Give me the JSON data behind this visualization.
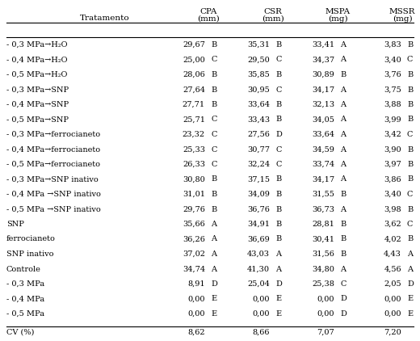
{
  "col_header_line1": [
    "CPA",
    "CSR",
    "MSPA",
    "MSSR"
  ],
  "col_header_line2": [
    "(mm)",
    "(mm)",
    "(mg)",
    "(mg)"
  ],
  "row_label": "Tratamento",
  "rows": [
    {
      "label": "- 0,3 MPa→H₂O",
      "cpa": "29,67",
      "cpa_l": "B",
      "csr": "35,31",
      "csr_l": "B",
      "mspa": "33,41",
      "mspa_l": "A",
      "mssr": "3,83",
      "mssr_l": "B"
    },
    {
      "label": "- 0,4 MPa→H₂O",
      "cpa": "25,00",
      "cpa_l": "C",
      "csr": "29,50",
      "csr_l": "C",
      "mspa": "34,37",
      "mspa_l": "A",
      "mssr": "3,40",
      "mssr_l": "C"
    },
    {
      "label": "- 0,5 MPa→H₂O",
      "cpa": "28,06",
      "cpa_l": "B",
      "csr": "35,85",
      "csr_l": "B",
      "mspa": "30,89",
      "mspa_l": "B",
      "mssr": "3,76",
      "mssr_l": "B"
    },
    {
      "label": "- 0,3 MPa→SNP",
      "cpa": "27,64",
      "cpa_l": "B",
      "csr": "30,95",
      "csr_l": "C",
      "mspa": "34,17",
      "mspa_l": "A",
      "mssr": "3,75",
      "mssr_l": "B"
    },
    {
      "label": "- 0,4 MPa→SNP",
      "cpa": "27,71",
      "cpa_l": "B",
      "csr": "33,64",
      "csr_l": "B",
      "mspa": "32,13",
      "mspa_l": "A",
      "mssr": "3,88",
      "mssr_l": "B"
    },
    {
      "label": "- 0,5 MPa→SNP",
      "cpa": "25,71",
      "cpa_l": "C",
      "csr": "33,43",
      "csr_l": "B",
      "mspa": "34,05",
      "mspa_l": "A",
      "mssr": "3,99",
      "mssr_l": "B"
    },
    {
      "label": "- 0,3 MPa→ferrocianeto",
      "cpa": "23,32",
      "cpa_l": "C",
      "csr": "27,56",
      "csr_l": "D",
      "mspa": "33,64",
      "mspa_l": "A",
      "mssr": "3,42",
      "mssr_l": "C"
    },
    {
      "label": "- 0,4 MPa→ferrocianeto",
      "cpa": "25,33",
      "cpa_l": "C",
      "csr": "30,77",
      "csr_l": "C",
      "mspa": "34,59",
      "mspa_l": "A",
      "mssr": "3,90",
      "mssr_l": "B"
    },
    {
      "label": "- 0,5 MPa→ferrocianeto",
      "cpa": "26,33",
      "cpa_l": "C",
      "csr": "32,24",
      "csr_l": "C",
      "mspa": "33,74",
      "mspa_l": "A",
      "mssr": "3,97",
      "mssr_l": "B"
    },
    {
      "label": "- 0,3 MPa→SNP inativo",
      "cpa": "30,80",
      "cpa_l": "B",
      "csr": "37,15",
      "csr_l": "B",
      "mspa": "34,17",
      "mspa_l": "A",
      "mssr": "3,86",
      "mssr_l": "B"
    },
    {
      "label": "- 0,4 MPa →SNP inativo",
      "cpa": "31,01",
      "cpa_l": "B",
      "csr": "34,09",
      "csr_l": "B",
      "mspa": "31,55",
      "mspa_l": "B",
      "mssr": "3,40",
      "mssr_l": "C"
    },
    {
      "label": "- 0,5 MPa →SNP inativo",
      "cpa": "29,76",
      "cpa_l": "B",
      "csr": "36,76",
      "csr_l": "B",
      "mspa": "36,73",
      "mspa_l": "A",
      "mssr": "3,98",
      "mssr_l": "B"
    },
    {
      "label": "SNP",
      "cpa": "35,66",
      "cpa_l": "A",
      "csr": "34,91",
      "csr_l": "B",
      "mspa": "28,81",
      "mspa_l": "B",
      "mssr": "3,62",
      "mssr_l": "C"
    },
    {
      "label": "ferrocianeto",
      "cpa": "36,26",
      "cpa_l": "A",
      "csr": "36,69",
      "csr_l": "B",
      "mspa": "30,41",
      "mspa_l": "B",
      "mssr": "4,02",
      "mssr_l": "B"
    },
    {
      "label": "SNP inativo",
      "cpa": "37,02",
      "cpa_l": "A",
      "csr": "43,03",
      "csr_l": "A",
      "mspa": "31,56",
      "mspa_l": "B",
      "mssr": "4,43",
      "mssr_l": "A"
    },
    {
      "label": "Controle",
      "cpa": "34,74",
      "cpa_l": "A",
      "csr": "41,30",
      "csr_l": "A",
      "mspa": "34,80",
      "mspa_l": "A",
      "mssr": "4,56",
      "mssr_l": "A"
    },
    {
      "label": "- 0,3 MPa",
      "cpa": "8,91",
      "cpa_l": "D",
      "csr": "25,04",
      "csr_l": "D",
      "mspa": "25,38",
      "mspa_l": "C",
      "mssr": "2,05",
      "mssr_l": "D"
    },
    {
      "label": "- 0,4 MPa",
      "cpa": "0,00",
      "cpa_l": "E",
      "csr": "0,00",
      "csr_l": "E",
      "mspa": "0,00",
      "mspa_l": "D",
      "mssr": "0,00",
      "mssr_l": "E"
    },
    {
      "label": "- 0,5 MPa",
      "cpa": "0,00",
      "cpa_l": "E",
      "csr": "0,00",
      "csr_l": "E",
      "mspa": "0,00",
      "mspa_l": "D",
      "mssr": "0,00",
      "mssr_l": "E"
    }
  ],
  "cv_row": {
    "label": "CV (%)",
    "cpa": "8,62",
    "csr": "8,66",
    "mspa": "7,07",
    "mssr": "7,20"
  },
  "bg_color": "#ffffff",
  "font_size": 7.0,
  "header_font_size": 7.5
}
